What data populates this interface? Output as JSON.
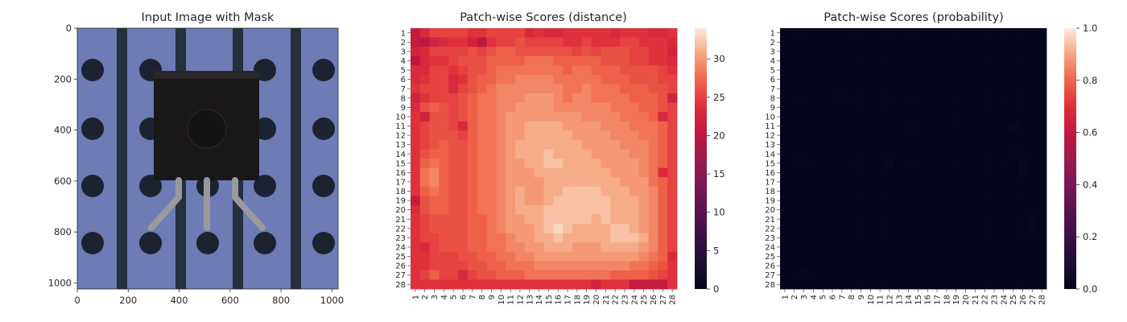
{
  "chart_data": [
    {
      "type": "image",
      "title": "Input Image with Mask",
      "x_ticks": [
        "0",
        "200",
        "400",
        "600",
        "800",
        "1000"
      ],
      "y_ticks": [
        "0",
        "200",
        "400",
        "600",
        "800",
        "1000"
      ],
      "xlim": [
        0,
        1024
      ],
      "ylim": [
        1024,
        0
      ],
      "colors": {
        "board": "#6d7cb5",
        "strip": "#25303f",
        "hole": "#1c2230",
        "body": "#1a1719",
        "lead": "#9a9a9e"
      }
    },
    {
      "type": "heatmap",
      "title": "Patch-wise Scores (distance)",
      "x_labels": [
        "1",
        "2",
        "3",
        "4",
        "5",
        "6",
        "7",
        "8",
        "9",
        "10",
        "11",
        "12",
        "13",
        "14",
        "15",
        "16",
        "17",
        "18",
        "19",
        "20",
        "21",
        "22",
        "23",
        "24",
        "25",
        "26",
        "27",
        "28"
      ],
      "y_labels": [
        "1",
        "2",
        "3",
        "4",
        "5",
        "6",
        "7",
        "8",
        "9",
        "10",
        "11",
        "12",
        "13",
        "14",
        "15",
        "16",
        "17",
        "18",
        "19",
        "20",
        "21",
        "22",
        "23",
        "24",
        "25",
        "26",
        "27",
        "28"
      ],
      "colorbar_ticks": [
        "0",
        "5",
        "10",
        "15",
        "20",
        "25",
        "30"
      ],
      "vmin": 0,
      "vmax": 34,
      "colormap": "rocket",
      "values": [
        [
          21,
          23,
          25,
          25,
          25,
          25,
          24,
          24,
          25,
          25,
          25,
          25,
          23,
          24,
          23,
          23,
          24,
          24,
          24,
          24,
          24,
          23,
          24,
          24,
          24,
          23,
          23,
          24
        ],
        [
          21,
          20,
          22,
          23,
          24,
          24,
          22,
          20,
          24,
          25,
          25,
          26,
          25,
          25,
          25,
          25,
          24,
          24,
          25,
          24,
          24,
          24,
          25,
          25,
          24,
          24,
          24,
          23
        ],
        [
          22,
          23,
          25,
          25,
          25,
          25,
          26,
          25,
          26,
          27,
          27,
          26,
          26,
          26,
          26,
          26,
          26,
          25,
          26,
          25,
          26,
          26,
          26,
          25,
          25,
          24,
          24,
          22
        ],
        [
          20,
          23,
          24,
          24,
          25,
          26,
          26,
          26,
          27,
          27,
          27,
          27,
          28,
          28,
          28,
          27,
          27,
          27,
          27,
          27,
          26,
          26,
          26,
          25,
          25,
          24,
          24,
          23
        ],
        [
          23,
          23,
          25,
          25,
          24,
          25,
          26,
          26,
          27,
          28,
          28,
          28,
          28,
          28,
          28,
          28,
          27,
          28,
          28,
          27,
          27,
          27,
          26,
          26,
          26,
          26,
          25,
          24
        ],
        [
          23,
          24,
          25,
          25,
          23,
          24,
          26,
          27,
          27,
          28,
          28,
          29,
          29,
          29,
          29,
          28,
          28,
          28,
          28,
          28,
          27,
          27,
          27,
          26,
          26,
          26,
          25,
          25
        ],
        [
          24,
          25,
          25,
          25,
          23,
          25,
          26,
          27,
          28,
          29,
          29,
          29,
          29,
          29,
          29,
          29,
          28,
          28,
          29,
          28,
          28,
          28,
          27,
          27,
          27,
          26,
          26,
          25
        ],
        [
          22,
          24,
          25,
          25,
          25,
          26,
          27,
          28,
          28,
          29,
          29,
          29,
          30,
          30,
          30,
          29,
          28,
          29,
          29,
          28,
          28,
          28,
          28,
          27,
          27,
          27,
          26,
          22
        ],
        [
          23,
          26,
          27,
          26,
          25,
          26,
          27,
          28,
          28,
          29,
          29,
          30,
          30,
          30,
          30,
          29,
          29,
          29,
          29,
          29,
          29,
          28,
          28,
          28,
          27,
          27,
          26,
          25
        ],
        [
          24,
          22,
          26,
          26,
          25,
          26,
          27,
          28,
          28,
          29,
          30,
          30,
          30,
          30,
          30,
          30,
          30,
          30,
          29,
          29,
          29,
          29,
          28,
          28,
          28,
          27,
          23,
          25
        ],
        [
          24,
          25,
          26,
          26,
          25,
          23,
          27,
          28,
          28,
          29,
          30,
          30,
          31,
          31,
          31,
          31,
          30,
          30,
          30,
          30,
          29,
          29,
          29,
          28,
          28,
          28,
          27,
          25
        ],
        [
          24,
          25,
          26,
          26,
          26,
          25,
          27,
          28,
          28,
          29,
          30,
          30,
          31,
          31,
          31,
          31,
          31,
          30,
          30,
          30,
          30,
          29,
          29,
          29,
          28,
          28,
          27,
          25
        ],
        [
          24,
          25,
          26,
          27,
          26,
          26,
          27,
          28,
          28,
          29,
          30,
          31,
          31,
          31,
          31,
          31,
          31,
          31,
          30,
          30,
          30,
          30,
          29,
          29,
          29,
          28,
          27,
          25
        ],
        [
          24,
          26,
          27,
          27,
          26,
          26,
          27,
          28,
          28,
          29,
          30,
          31,
          31,
          31,
          32,
          31,
          31,
          31,
          31,
          30,
          30,
          30,
          30,
          29,
          29,
          28,
          27,
          25
        ],
        [
          24,
          27,
          28,
          27,
          26,
          26,
          27,
          28,
          28,
          29,
          30,
          30,
          31,
          31,
          32,
          32,
          31,
          31,
          31,
          31,
          30,
          30,
          30,
          30,
          29,
          28,
          27,
          25
        ],
        [
          24,
          28,
          29,
          27,
          26,
          26,
          27,
          28,
          28,
          29,
          30,
          30,
          30,
          31,
          31,
          31,
          31,
          31,
          31,
          31,
          31,
          30,
          30,
          30,
          29,
          28,
          23,
          25
        ],
        [
          24,
          28,
          29,
          27,
          26,
          26,
          27,
          28,
          28,
          29,
          30,
          30,
          30,
          30,
          31,
          31,
          31,
          31,
          31,
          31,
          31,
          31,
          30,
          30,
          30,
          28,
          27,
          25
        ],
        [
          24,
          27,
          28,
          27,
          26,
          26,
          27,
          28,
          28,
          29,
          30,
          31,
          30,
          30,
          31,
          31,
          32,
          32,
          32,
          32,
          31,
          31,
          31,
          30,
          30,
          29,
          27,
          25
        ],
        [
          21,
          26,
          27,
          27,
          26,
          26,
          27,
          28,
          28,
          29,
          30,
          31,
          30,
          30,
          31,
          32,
          32,
          32,
          32,
          32,
          32,
          31,
          31,
          31,
          30,
          29,
          27,
          25
        ],
        [
          23,
          26,
          27,
          27,
          26,
          26,
          27,
          28,
          28,
          29,
          30,
          31,
          31,
          31,
          32,
          32,
          32,
          32,
          32,
          32,
          32,
          31,
          31,
          31,
          30,
          29,
          27,
          25
        ],
        [
          24,
          25,
          26,
          26,
          26,
          26,
          27,
          27,
          28,
          29,
          30,
          30,
          31,
          31,
          32,
          32,
          32,
          32,
          32,
          31,
          32,
          31,
          31,
          31,
          30,
          29,
          27,
          25
        ],
        [
          24,
          25,
          26,
          26,
          26,
          26,
          27,
          27,
          28,
          29,
          30,
          30,
          30,
          31,
          32,
          33,
          32,
          31,
          31,
          31,
          31,
          32,
          32,
          31,
          30,
          29,
          27,
          25
        ],
        [
          24,
          25,
          25,
          26,
          26,
          26,
          27,
          27,
          28,
          28,
          29,
          30,
          30,
          31,
          31,
          32,
          31,
          31,
          31,
          31,
          31,
          32,
          32,
          32,
          31,
          29,
          27,
          25
        ],
        [
          24,
          23,
          25,
          26,
          26,
          26,
          27,
          27,
          28,
          28,
          29,
          29,
          30,
          30,
          31,
          31,
          31,
          30,
          30,
          30,
          31,
          31,
          31,
          31,
          30,
          29,
          27,
          25
        ],
        [
          24,
          24,
          25,
          25,
          25,
          26,
          26,
          27,
          27,
          28,
          28,
          29,
          29,
          30,
          30,
          30,
          30,
          30,
          30,
          30,
          30,
          30,
          30,
          30,
          29,
          28,
          27,
          23
        ],
        [
          24,
          24,
          25,
          25,
          25,
          25,
          26,
          26,
          27,
          27,
          28,
          28,
          28,
          29,
          29,
          29,
          29,
          29,
          29,
          29,
          29,
          29,
          29,
          28,
          28,
          27,
          26,
          24
        ],
        [
          24,
          25,
          27,
          25,
          25,
          23,
          25,
          26,
          26,
          27,
          27,
          27,
          28,
          28,
          28,
          28,
          28,
          28,
          28,
          28,
          28,
          27,
          27,
          27,
          27,
          26,
          25,
          24
        ],
        [
          24,
          24,
          24,
          24,
          24,
          24,
          24,
          24,
          24,
          24,
          24,
          24,
          24,
          24,
          24,
          24,
          24,
          24,
          24,
          22,
          24,
          24,
          24,
          21,
          21,
          21,
          21,
          24
        ]
      ]
    },
    {
      "type": "heatmap",
      "title": "Patch-wise Scores (probability)",
      "x_labels": [
        "1",
        "2",
        "3",
        "4",
        "5",
        "6",
        "7",
        "8",
        "9",
        "10",
        "11",
        "12",
        "13",
        "14",
        "15",
        "16",
        "17",
        "18",
        "19",
        "20",
        "21",
        "22",
        "23",
        "24",
        "25",
        "26",
        "27",
        "28"
      ],
      "y_labels": [
        "1",
        "2",
        "3",
        "4",
        "5",
        "6",
        "7",
        "8",
        "9",
        "10",
        "11",
        "12",
        "13",
        "14",
        "15",
        "16",
        "17",
        "18",
        "19",
        "20",
        "21",
        "22",
        "23",
        "24",
        "25",
        "26",
        "27",
        "28"
      ],
      "colorbar_ticks": [
        "0.0",
        "0.2",
        "0.4",
        "0.6",
        "0.8",
        "1.0"
      ],
      "vmin": 0,
      "vmax": 1,
      "colormap": "rocket",
      "base_value": 0.0,
      "nonzero_cells": [
        {
          "row": 8,
          "col": 7,
          "value": 0.012
        },
        {
          "row": 10,
          "col": 19,
          "value": 0.01
        },
        {
          "row": 11,
          "col": 14,
          "value": 0.01
        },
        {
          "row": 11,
          "col": 25,
          "value": 0.015
        },
        {
          "row": 14,
          "col": 25,
          "value": 0.012
        },
        {
          "row": 15,
          "col": 3,
          "value": 0.02
        },
        {
          "row": 15,
          "col": 12,
          "value": 0.015
        },
        {
          "row": 15,
          "col": 26,
          "value": 0.02
        },
        {
          "row": 16,
          "col": 26,
          "value": 0.015
        },
        {
          "row": 21,
          "col": 27,
          "value": 0.02
        },
        {
          "row": 22,
          "col": 27,
          "value": 0.015
        },
        {
          "row": 27,
          "col": 3,
          "value": 0.02
        }
      ]
    }
  ]
}
